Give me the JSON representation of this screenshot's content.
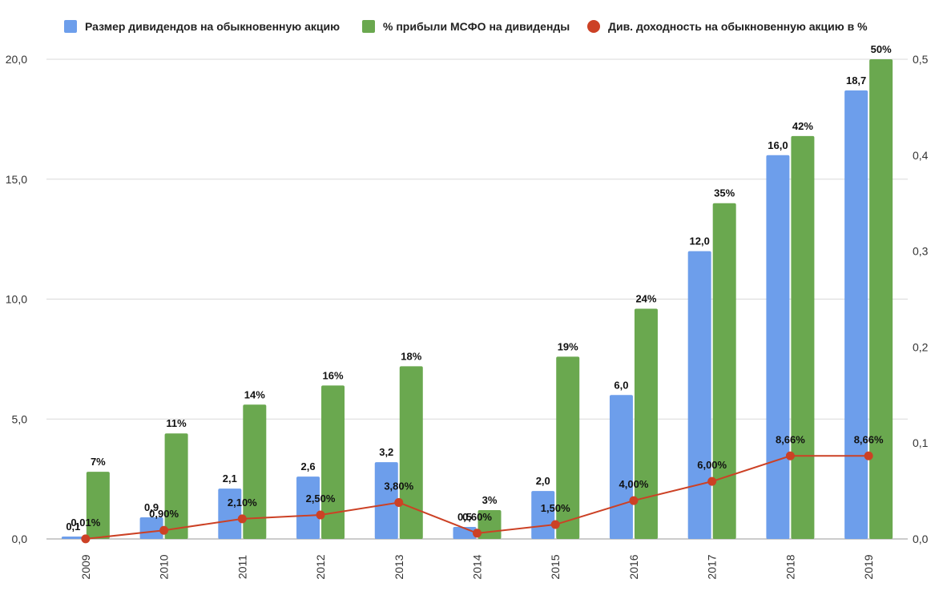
{
  "chart_data": {
    "type": "bar",
    "categories": [
      "2009",
      "2010",
      "2011",
      "2012",
      "2013",
      "2014",
      "2015",
      "2016",
      "2017",
      "2018",
      "2019"
    ],
    "series": [
      {
        "name": "Размер дивидендов на обыкновенную акцию",
        "kind": "bar",
        "axis": "left",
        "color": "#6d9eeb",
        "values": [
          0.1,
          0.9,
          2.1,
          2.6,
          3.2,
          0.5,
          2.0,
          6.0,
          12.0,
          16.0,
          18.7
        ],
        "labels": [
          "0,1",
          "0,9",
          "2,1",
          "2,6",
          "3,2",
          "0,5",
          "2,0",
          "6,0",
          "12,0",
          "16,0",
          "18,7"
        ]
      },
      {
        "name": "% прибыли МСФО на дивиденды",
        "kind": "bar",
        "axis": "left",
        "color": "#6aa84f",
        "values": [
          2.8,
          4.4,
          5.6,
          6.4,
          7.2,
          1.2,
          7.6,
          9.6,
          14.0,
          16.8,
          20.0
        ],
        "labels": [
          "7%",
          "11%",
          "14%",
          "16%",
          "18%",
          "3%",
          "19%",
          "24%",
          "35%",
          "42%",
          "50%"
        ]
      },
      {
        "name": "Див. доходность на обыкновенную акцию в %",
        "kind": "line",
        "axis": "right",
        "color": "#cc4125",
        "values": [
          0.0001,
          0.009,
          0.021,
          0.025,
          0.038,
          0.006,
          0.015,
          0.04,
          0.06,
          0.0866,
          0.0866
        ],
        "labels": [
          "0,01%",
          "0,90%",
          "2,10%",
          "2,50%",
          "3,80%",
          "0,60%",
          "1,50%",
          "4,00%",
          "6,00%",
          "8,66%",
          "8,66%"
        ]
      }
    ],
    "y_left": {
      "min": 0,
      "max": 20,
      "ticks": [
        "0,0",
        "5,0",
        "10,0",
        "15,0",
        "20,0"
      ]
    },
    "y_right": {
      "min": 0,
      "max": 0.5,
      "ticks": [
        "0,0",
        "0,1",
        "0,2",
        "0,3",
        "0,4",
        "0,5"
      ]
    },
    "grid": true,
    "legend_position": "top",
    "xlabel": "",
    "ylabel": "",
    "title": ""
  }
}
